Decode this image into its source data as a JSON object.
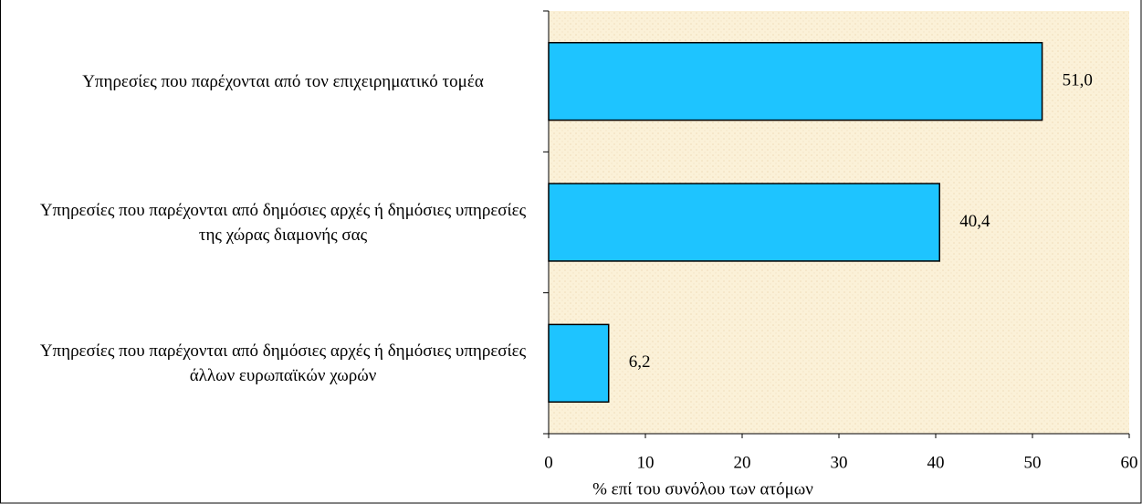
{
  "chart_data": {
    "type": "bar",
    "orientation": "horizontal",
    "categories": [
      "Υπηρεσίες που παρέχονται από τον επιχειρηματικό τομέα",
      "Υπηρεσίες που παρέχονται από δημόσιες αρχές ή δημόσιες υπηρεσίες της χώρας διαμονής σας",
      "Υπηρεσίες που παρέχονται από δημόσιες αρχές ή δημόσιες υπηρεσίες άλλων ευρωπαϊκών χωρών"
    ],
    "values": [
      51.0,
      40.4,
      6.2
    ],
    "value_labels": [
      "51,0",
      "40,4",
      "6,2"
    ],
    "color": "#1ec4ff",
    "xlabel": "% επί του συνόλου των ατόμων",
    "xlim": [
      0,
      60
    ],
    "xticks": [
      0,
      10,
      20,
      30,
      40,
      50,
      60
    ],
    "grid": false
  }
}
